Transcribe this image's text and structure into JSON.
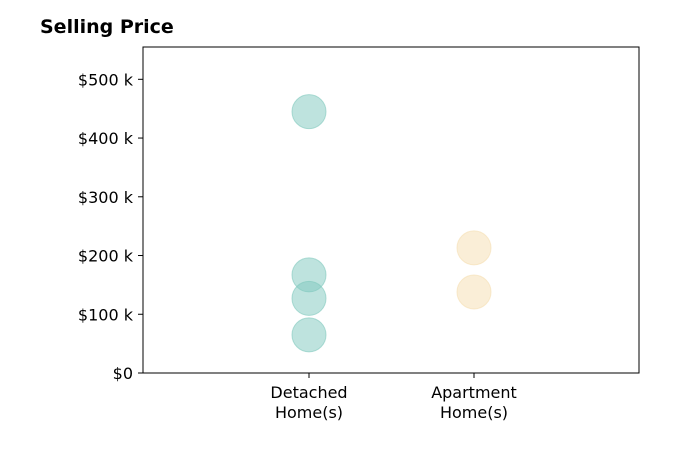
{
  "chart_data": {
    "type": "scatter",
    "title": "Selling Price",
    "xlabel": "",
    "ylabel": "",
    "categories": [
      "Detached\nHome(s)",
      "Apartment\nHome(s)"
    ],
    "ylim": [
      0,
      555
    ],
    "y_ticks": [
      {
        "value": 0,
        "label": "$0"
      },
      {
        "value": 100,
        "label": "$100 k"
      },
      {
        "value": 200,
        "label": "$200 k"
      },
      {
        "value": 300,
        "label": "$300 k"
      },
      {
        "value": 400,
        "label": "$400 k"
      },
      {
        "value": 500,
        "label": "$500 k"
      }
    ],
    "series": [
      {
        "category": "Detached\nHome(s)",
        "values": [
          445,
          167,
          127,
          65
        ],
        "color": "#7ec8bd"
      },
      {
        "category": "Apartment\nHome(s)",
        "values": [
          213,
          138
        ],
        "color": "#f5deb0"
      }
    ],
    "grid": false,
    "legend": "none"
  }
}
